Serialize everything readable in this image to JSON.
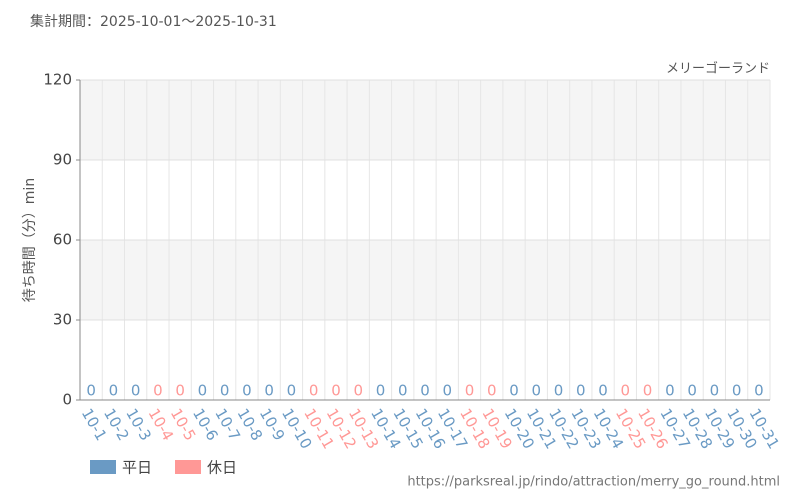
{
  "chart_data": {
    "type": "bar",
    "title": "集計期間：2025-10-01～2025-10-31",
    "subtitle": "メリーゴーランド",
    "y_label": "待ち時間（分）min",
    "source": "https://parksreal.jp/rindo/attraction/merry_go_round.html",
    "categories": [
      "10-1",
      "10-2",
      "10-3",
      "10-4",
      "10-5",
      "10-6",
      "10-7",
      "10-8",
      "10-9",
      "10-10",
      "10-11",
      "10-12",
      "10-13",
      "10-14",
      "10-15",
      "10-16",
      "10-17",
      "10-18",
      "10-19",
      "10-20",
      "10-21",
      "10-22",
      "10-23",
      "10-24",
      "10-25",
      "10-26",
      "10-27",
      "10-28",
      "10-29",
      "10-30",
      "10-31"
    ],
    "series": [
      {
        "name": "平日",
        "color": "#6a9ac4",
        "values": [
          0,
          0,
          0,
          null,
          null,
          0,
          0,
          0,
          0,
          0,
          null,
          null,
          null,
          0,
          0,
          0,
          0,
          null,
          null,
          0,
          0,
          0,
          0,
          0,
          null,
          null,
          0,
          0,
          0,
          0,
          0
        ]
      },
      {
        "name": "休日",
        "color": "#ff9896",
        "values": [
          null,
          null,
          null,
          0,
          0,
          null,
          null,
          null,
          null,
          null,
          0,
          0,
          0,
          null,
          null,
          null,
          null,
          0,
          0,
          null,
          null,
          null,
          null,
          null,
          0,
          0,
          null,
          null,
          null,
          null,
          null
        ]
      }
    ],
    "ylim": [
      0,
      120
    ],
    "yticks": [
      0,
      30,
      60,
      90,
      120
    ],
    "grid": true
  }
}
